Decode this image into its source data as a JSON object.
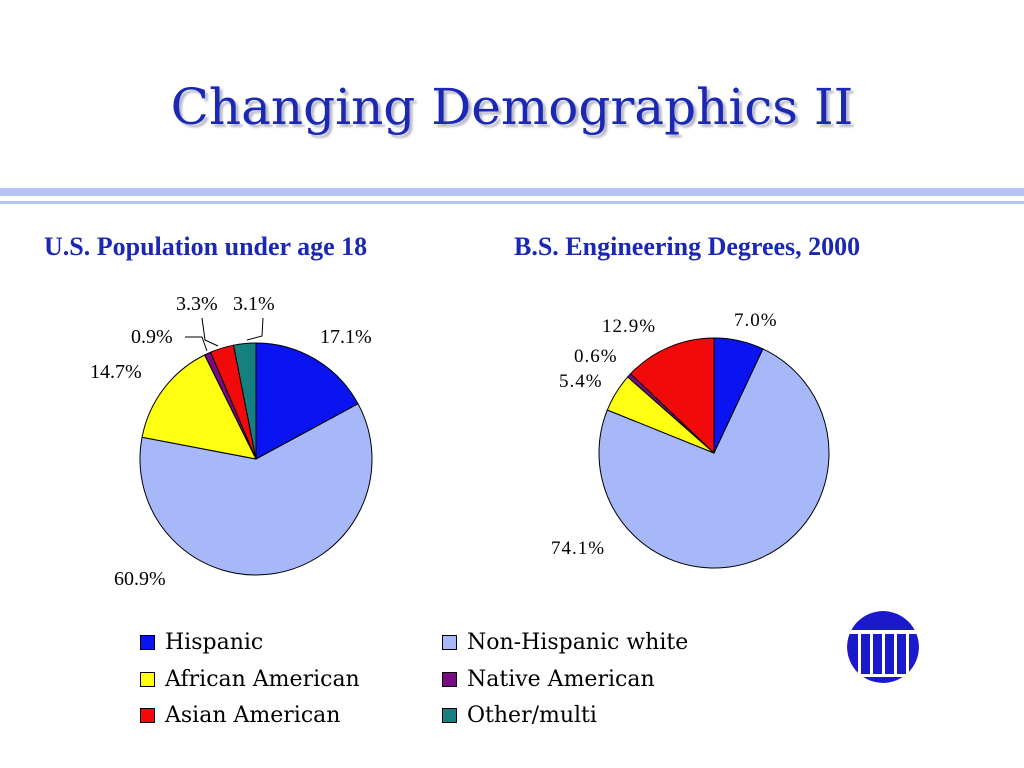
{
  "slide": {
    "title": "Changing Demographics II"
  },
  "colors": {
    "title_blue": "#1a28b4",
    "rule": "#b7c3f4",
    "logo": "#1a1acc"
  },
  "chart_data": [
    {
      "type": "pie",
      "title": "U.S. Population under age 18",
      "slices": [
        {
          "name": "Hispanic",
          "value": 17.1,
          "label": "17.1%",
          "color": "#0a14f0"
        },
        {
          "name": "Non-Hispanic white",
          "value": 60.9,
          "label": "60.9%",
          "color": "#a6b8f8"
        },
        {
          "name": "African American",
          "value": 14.7,
          "label": "14.7%",
          "color": "#ffff12"
        },
        {
          "name": "Native American",
          "value": 0.9,
          "label": "0.9%",
          "color": "#7a0a86"
        },
        {
          "name": "Asian American",
          "value": 3.3,
          "label": "3.3%",
          "color": "#f20a0a"
        },
        {
          "name": "Other/multi",
          "value": 3.1,
          "label": "3.1%",
          "color": "#168080"
        }
      ]
    },
    {
      "type": "pie",
      "title": "B.S. Engineering Degrees, 2000",
      "slices": [
        {
          "name": "Hispanic",
          "value": 7.0,
          "label": "7.0%",
          "color": "#0a14f0"
        },
        {
          "name": "Non-Hispanic white",
          "value": 74.1,
          "label": "74.1%",
          "color": "#a6b8f8"
        },
        {
          "name": "African American",
          "value": 5.4,
          "label": "5.4%",
          "color": "#ffff12"
        },
        {
          "name": "Native American",
          "value": 0.6,
          "label": "0.6%",
          "color": "#7a0a86"
        },
        {
          "name": "Asian American",
          "value": 12.9,
          "label": "12.9%",
          "color": "#f20a0a"
        }
      ]
    }
  ],
  "legend": [
    {
      "label": "Hispanic",
      "color": "#0a14f0"
    },
    {
      "label": "Non-Hispanic white",
      "color": "#a6b8f8"
    },
    {
      "label": "African American",
      "color": "#ffff12"
    },
    {
      "label": "Native American",
      "color": "#7a0a86"
    },
    {
      "label": "Asian American",
      "color": "#f20a0a"
    },
    {
      "label": "Other/multi",
      "color": "#168080"
    }
  ]
}
